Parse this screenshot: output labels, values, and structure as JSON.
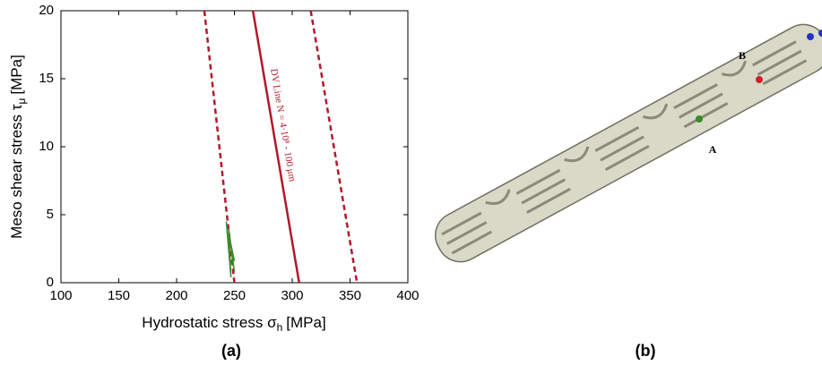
{
  "chart_data": {
    "type": "line",
    "xlabel": {
      "text": "Hydrostatic stress σ",
      "sub": "h",
      "unit": "[MPa]"
    },
    "ylabel": {
      "text": "Meso shear stress τ",
      "sub": "μ",
      "unit": "[MPa]"
    },
    "xlim": [
      100,
      400
    ],
    "xticks": [
      100,
      150,
      200,
      250,
      300,
      350,
      400
    ],
    "ylim": [
      0,
      20
    ],
    "yticks": [
      0,
      5,
      10,
      15,
      20
    ],
    "annotation": "DV Line    N = 4·10⁸  -  100 μm",
    "series": [
      {
        "color": "#b2182b",
        "dash": false,
        "x": [
          266,
          306
        ],
        "values": [
          20,
          0
        ]
      },
      {
        "color": "#b2182b",
        "dash": true,
        "x": [
          224,
          250
        ],
        "values": [
          20,
          0
        ]
      },
      {
        "color": "#b2182b",
        "dash": true,
        "x": [
          316,
          356
        ],
        "values": [
          20,
          0
        ]
      },
      {
        "color": "#3a8a2a",
        "dash": false,
        "x": [
          243,
          247,
          245,
          250,
          246,
          249,
          247,
          250,
          248
        ],
        "values": [
          4.5,
          0.4,
          4,
          0.8,
          3.4,
          1.2,
          2.8,
          1.6,
          2.2
        ]
      }
    ]
  },
  "panel_labels": [
    "(a)",
    "(b)"
  ],
  "points": [
    {
      "label": "A",
      "color": "#3a8a2a"
    },
    {
      "label": "B",
      "color": "#b2182b"
    }
  ]
}
